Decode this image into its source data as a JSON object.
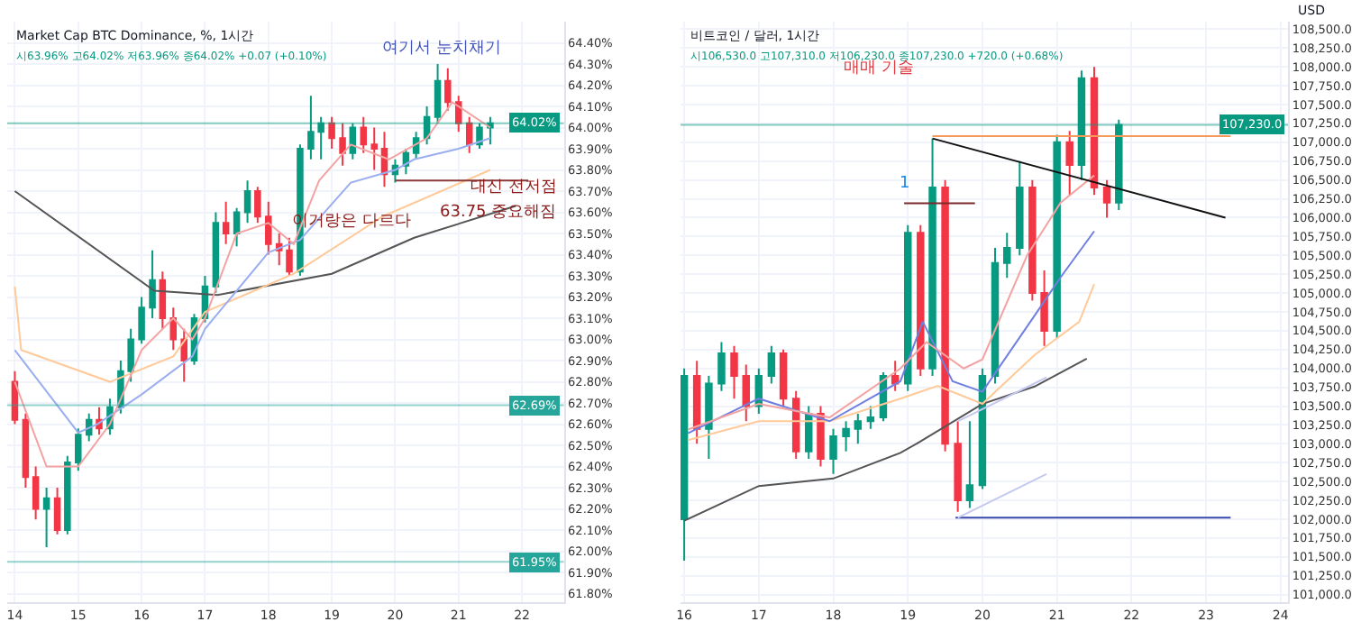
{
  "chart_data": [
    {
      "type": "candlestick",
      "title": "Market Cap BTC Dominance, %, 1시간",
      "subtitle": "시63.96% 고64.02% 저63.96% 종64.02% +0.07 (+0.10%)",
      "grid": true,
      "x": [
        14.0,
        14.17,
        14.33,
        14.5,
        14.67,
        14.83,
        15.0,
        15.17,
        15.33,
        15.5,
        15.67,
        15.83,
        16.0,
        16.17,
        16.33,
        16.5,
        16.67,
        16.83,
        17.0,
        17.17,
        17.33,
        17.5,
        17.67,
        17.83,
        18.0,
        18.17,
        18.33,
        18.5,
        18.67,
        18.83,
        19.0,
        19.17,
        19.33,
        19.5,
        19.67,
        19.83,
        20.0,
        20.17,
        20.33,
        20.5,
        20.67,
        20.83,
        21.0,
        21.17,
        21.33,
        21.5
      ],
      "ohlc": [
        [
          62.8,
          62.85,
          62.6,
          62.62
        ],
        [
          62.62,
          62.65,
          62.3,
          62.35
        ],
        [
          62.35,
          62.4,
          62.15,
          62.2
        ],
        [
          62.2,
          62.3,
          62.02,
          62.25
        ],
        [
          62.25,
          62.3,
          62.08,
          62.1
        ],
        [
          62.1,
          62.45,
          62.08,
          62.42
        ],
        [
          62.42,
          62.58,
          62.38,
          62.55
        ],
        [
          62.55,
          62.65,
          62.52,
          62.62
        ],
        [
          62.62,
          62.68,
          62.55,
          62.58
        ],
        [
          62.58,
          62.72,
          62.55,
          62.68
        ],
        [
          62.68,
          62.9,
          62.65,
          62.85
        ],
        [
          62.85,
          63.05,
          62.8,
          63.0
        ],
        [
          63.0,
          63.2,
          62.98,
          63.15
        ],
        [
          63.15,
          63.42,
          63.1,
          63.28
        ],
        [
          63.28,
          63.32,
          63.05,
          63.1
        ],
        [
          63.1,
          63.15,
          62.95,
          63.0
        ],
        [
          63.0,
          63.05,
          62.8,
          62.9
        ],
        [
          62.9,
          63.12,
          62.88,
          63.1
        ],
        [
          63.1,
          63.3,
          63.08,
          63.25
        ],
        [
          63.25,
          63.6,
          63.22,
          63.55
        ],
        [
          63.55,
          63.65,
          63.45,
          63.5
        ],
        [
          63.5,
          63.62,
          63.44,
          63.6
        ],
        [
          63.6,
          63.75,
          63.55,
          63.7
        ],
        [
          63.7,
          63.72,
          63.55,
          63.58
        ],
        [
          63.58,
          63.65,
          63.4,
          63.45
        ],
        [
          63.45,
          63.5,
          63.35,
          63.42
        ],
        [
          63.42,
          63.48,
          63.3,
          63.32
        ],
        [
          63.32,
          63.92,
          63.3,
          63.9
        ],
        [
          63.9,
          64.15,
          63.85,
          63.98
        ],
        [
          63.98,
          64.05,
          63.85,
          64.02
        ],
        [
          64.02,
          64.05,
          63.9,
          63.95
        ],
        [
          63.95,
          64.02,
          63.82,
          63.88
        ],
        [
          63.88,
          64.02,
          63.85,
          64.0
        ],
        [
          64.0,
          64.05,
          63.88,
          63.92
        ],
        [
          63.92,
          64.0,
          63.8,
          63.9
        ],
        [
          63.9,
          63.98,
          63.72,
          63.78
        ],
        [
          63.78,
          63.85,
          63.74,
          63.82
        ],
        [
          63.82,
          63.9,
          63.78,
          63.88
        ],
        [
          63.88,
          63.98,
          63.85,
          63.95
        ],
        [
          63.95,
          64.1,
          63.92,
          64.05
        ],
        [
          64.05,
          64.3,
          64.02,
          64.22
        ],
        [
          64.22,
          64.28,
          64.08,
          64.12
        ],
        [
          64.12,
          64.15,
          63.98,
          64.02
        ],
        [
          64.02,
          64.05,
          63.88,
          63.92
        ],
        [
          63.92,
          64.02,
          63.9,
          64.0
        ],
        [
          64.0,
          64.05,
          63.92,
          64.02
        ]
      ],
      "series": [
        {
          "type": "line",
          "color": "#555555",
          "x": [
            14.0,
            16.2,
            17.2,
            19.0,
            20.3,
            21.9
          ],
          "values": [
            63.7,
            63.23,
            63.21,
            63.31,
            63.48,
            63.63
          ]
        },
        {
          "type": "line",
          "color": "#ffc999",
          "x": [
            14.0,
            14.1,
            15.5,
            16.5,
            17.0,
            18.4,
            19.8,
            21.5
          ],
          "values": [
            63.25,
            62.95,
            62.8,
            62.92,
            63.13,
            63.31,
            63.58,
            63.8
          ]
        },
        {
          "type": "line",
          "color": "#9aaef0",
          "x": [
            14.0,
            15.0,
            15.3,
            16.0,
            16.8,
            17.0,
            18.0,
            18.5,
            19.3,
            20.0,
            20.3,
            21.0,
            21.5
          ],
          "values": [
            62.95,
            62.56,
            62.6,
            62.74,
            62.92,
            63.05,
            63.41,
            63.47,
            63.74,
            63.8,
            63.85,
            63.9,
            63.95
          ]
        },
        {
          "type": "line",
          "color": "#f4a3a3",
          "x": [
            14.0,
            14.5,
            15.0,
            15.5,
            16.0,
            16.5,
            16.8,
            17.0,
            17.5,
            18.0,
            18.4,
            18.8,
            19.3,
            19.9,
            20.5,
            20.9,
            21.5
          ],
          "values": [
            62.8,
            62.4,
            62.4,
            62.6,
            62.95,
            63.1,
            63.0,
            63.1,
            63.5,
            63.55,
            63.45,
            63.75,
            63.92,
            63.85,
            63.95,
            64.12,
            64.0
          ]
        },
        {
          "type": "line",
          "color": "#8b3a3a",
          "x": [
            20.0,
            22.1
          ],
          "values": [
            63.75,
            63.75
          ]
        }
      ],
      "ref_lines": [
        {
          "axis": "y",
          "value": 64.02,
          "label": "64.02%",
          "color": "#089981"
        },
        {
          "axis": "y",
          "value": 62.69,
          "label": "62.69%",
          "color": "#26a69a"
        },
        {
          "axis": "y",
          "value": 61.95,
          "label": "61.95%",
          "color": "#26a69a"
        }
      ],
      "annotations": [
        "여기서 눈치채기",
        "이거랑은 다르다",
        "대신 전저점",
        "63.75 중요해짐"
      ],
      "xlim": [
        13.88,
        22.66
      ],
      "xticks": [
        14,
        15,
        16,
        17,
        18,
        19,
        20,
        21,
        22
      ],
      "ylim": [
        61.76,
        64.5
      ],
      "yticks": [
        {
          "value": 61.8,
          "label": "61.80%"
        },
        {
          "value": 61.9,
          "label": "61.90%"
        },
        {
          "value": 62.0,
          "label": "62.00%"
        },
        {
          "value": 62.1,
          "label": "62.10%"
        },
        {
          "value": 62.2,
          "label": "62.20%"
        },
        {
          "value": 62.3,
          "label": "62.30%"
        },
        {
          "value": 62.4,
          "label": "62.40%"
        },
        {
          "value": 62.5,
          "label": "62.50%"
        },
        {
          "value": 62.6,
          "label": "62.60%"
        },
        {
          "value": 62.7,
          "label": "62.70%"
        },
        {
          "value": 62.8,
          "label": "62.80%"
        },
        {
          "value": 62.9,
          "label": "62.90%"
        },
        {
          "value": 63.0,
          "label": "63.00%"
        },
        {
          "value": 63.1,
          "label": "63.10%"
        },
        {
          "value": 63.2,
          "label": "63.20%"
        },
        {
          "value": 63.3,
          "label": "63.30%"
        },
        {
          "value": 63.4,
          "label": "63.40%"
        },
        {
          "value": 63.5,
          "label": "63.50%"
        },
        {
          "value": 63.6,
          "label": "63.60%"
        },
        {
          "value": 63.7,
          "label": "63.70%"
        },
        {
          "value": 63.8,
          "label": "63.80%"
        },
        {
          "value": 63.9,
          "label": "63.90%"
        },
        {
          "value": 64.0,
          "label": "64.00%"
        },
        {
          "value": 64.1,
          "label": "64.10%"
        },
        {
          "value": 64.2,
          "label": "64.20%"
        },
        {
          "value": 64.3,
          "label": "64.30%"
        },
        {
          "value": 64.4,
          "label": "64.40%"
        }
      ]
    },
    {
      "type": "candlestick",
      "title": "비트코인 / 달러, 1시간",
      "subtitle": "시106,530.0 고107,310.0 저106,230.0 종107,230.0 +720.0 (+0.68%)",
      "ylabel": "USD",
      "grid": true,
      "x": [
        16.0,
        16.17,
        16.33,
        16.5,
        16.67,
        16.83,
        17.0,
        17.17,
        17.33,
        17.5,
        17.67,
        17.83,
        18.0,
        18.17,
        18.33,
        18.5,
        18.67,
        18.83,
        19.0,
        19.17,
        19.33,
        19.5,
        19.67,
        19.83,
        20.0,
        20.17,
        20.33,
        20.5,
        20.67,
        20.83,
        21.0,
        21.17,
        21.33,
        21.5,
        21.67,
        21.83
      ],
      "ohlc": [
        [
          102000,
          104000,
          101450,
          103900
        ],
        [
          103900,
          104100,
          103000,
          103200
        ],
        [
          103200,
          103900,
          102800,
          103800
        ],
        [
          103800,
          104350,
          103700,
          104200
        ],
        [
          104200,
          104300,
          103600,
          103900
        ],
        [
          103900,
          104050,
          103300,
          103500
        ],
        [
          103500,
          104000,
          103400,
          103900
        ],
        [
          103900,
          104300,
          103800,
          104200
        ],
        [
          104200,
          104250,
          103500,
          103600
        ],
        [
          103600,
          103700,
          102800,
          102900
        ],
        [
          102900,
          103500,
          102800,
          103400
        ],
        [
          103400,
          103500,
          102700,
          102800
        ],
        [
          102800,
          103200,
          102600,
          103100
        ],
        [
          103100,
          103300,
          102900,
          103200
        ],
        [
          103200,
          103400,
          103000,
          103300
        ],
        [
          103300,
          103500,
          103200,
          103350
        ],
        [
          103350,
          103950,
          103300,
          103900
        ],
        [
          103900,
          104100,
          103700,
          103800
        ],
        [
          103800,
          105900,
          103700,
          105800
        ],
        [
          105800,
          105900,
          103900,
          104000
        ],
        [
          104000,
          107050,
          103900,
          106400
        ],
        [
          106400,
          106500,
          102900,
          103000
        ],
        [
          103000,
          103300,
          102100,
          102250
        ],
        [
          102250,
          103300,
          102150,
          102450
        ],
        [
          102450,
          104000,
          102400,
          103900
        ],
        [
          103900,
          105600,
          103800,
          105400
        ],
        [
          105400,
          105800,
          105200,
          105600
        ],
        [
          105600,
          106750,
          105500,
          106400
        ],
        [
          106400,
          106500,
          104900,
          105000
        ],
        [
          105000,
          105300,
          104300,
          104500
        ],
        [
          104500,
          107100,
          104400,
          107000
        ],
        [
          107000,
          107150,
          106300,
          106700
        ],
        [
          106700,
          107950,
          106500,
          107850
        ],
        [
          107850,
          108000,
          106300,
          106400
        ],
        [
          106400,
          106500,
          106000,
          106200
        ],
        [
          106200,
          107300,
          106100,
          107230
        ]
      ],
      "series": [
        {
          "type": "line",
          "color": "#555555",
          "x": [
            16.0,
            17.0,
            18.0,
            18.9,
            19.15,
            20.0,
            20.7,
            21.4
          ],
          "values": [
            101980,
            102440,
            102540,
            102880,
            103020,
            103530,
            103760,
            104130
          ]
        },
        {
          "type": "line",
          "color": "#ffc999",
          "x": [
            16.05,
            17.0,
            17.95,
            18.9,
            19.4,
            20.0,
            20.7,
            21.3,
            21.5
          ],
          "values": [
            103050,
            103300,
            103300,
            103600,
            103770,
            103530,
            104180,
            104620,
            105120
          ]
        },
        {
          "type": "line",
          "color": "#6f7fe0",
          "x": [
            16.05,
            17.0,
            17.95,
            18.9,
            19.2,
            19.6,
            20.0,
            20.7,
            21.05,
            21.5
          ],
          "values": [
            103140,
            103600,
            103300,
            103830,
            104620,
            103830,
            103690,
            104700,
            105210,
            105820
          ]
        },
        {
          "type": "line",
          "color": "#f4a3a3",
          "x": [
            16.05,
            17.0,
            17.95,
            18.9,
            19.25,
            19.75,
            20.0,
            20.6,
            21.05,
            21.5
          ],
          "values": [
            103190,
            103530,
            103350,
            104000,
            104350,
            104000,
            104120,
            105500,
            106200,
            106560
          ]
        },
        {
          "type": "line",
          "color": "#f59a5b",
          "x": [
            19.33,
            23.33
          ],
          "values": [
            107080,
            107080
          ]
        },
        {
          "type": "line",
          "color": "#111111",
          "x": [
            19.33,
            23.26
          ],
          "values": [
            107050,
            106000
          ]
        },
        {
          "type": "line",
          "color": "#7a2a2a",
          "x": [
            18.95,
            19.9
          ],
          "values": [
            106190,
            106190
          ]
        },
        {
          "type": "line",
          "color": "#3949ab",
          "x": [
            19.64,
            23.33
          ],
          "values": [
            102020,
            102020
          ]
        },
        {
          "type": "line",
          "color": "#c5c8f0",
          "x": [
            19.67,
            20.86
          ],
          "values": [
            102020,
            102600
          ]
        },
        {
          "type": "line",
          "color": "#c5c8f0",
          "x": [
            19.67,
            20.86
          ],
          "values": [
            103300,
            103880
          ]
        }
      ],
      "ref_lines": [
        {
          "axis": "y",
          "value": 107230,
          "label": "107,230.0",
          "color": "#089981"
        }
      ],
      "annotations": [
        "매매 기술",
        "1"
      ],
      "xlim": [
        15.95,
        24.1
      ],
      "xticks": [
        16,
        17,
        18,
        19,
        20,
        21,
        22,
        23,
        24
      ],
      "ylim": [
        100900,
        108600
      ],
      "yticks": [
        {
          "value": 101000,
          "label": "101,000.0"
        },
        {
          "value": 101250,
          "label": "101,250.0"
        },
        {
          "value": 101500,
          "label": "101,500.0"
        },
        {
          "value": 101750,
          "label": "101,750.0"
        },
        {
          "value": 102000,
          "label": "102,000.0"
        },
        {
          "value": 102250,
          "label": "102,250.0"
        },
        {
          "value": 102500,
          "label": "102,500.0"
        },
        {
          "value": 102750,
          "label": "102,750.0"
        },
        {
          "value": 103000,
          "label": "103,000.0"
        },
        {
          "value": 103250,
          "label": "103,250.0"
        },
        {
          "value": 103500,
          "label": "103,500.0"
        },
        {
          "value": 103750,
          "label": "103,750.0"
        },
        {
          "value": 104000,
          "label": "104,000.0"
        },
        {
          "value": 104250,
          "label": "104,250.0"
        },
        {
          "value": 104500,
          "label": "104,500.0"
        },
        {
          "value": 104750,
          "label": "104,750.0"
        },
        {
          "value": 105000,
          "label": "105,000.0"
        },
        {
          "value": 105250,
          "label": "105,250.0"
        },
        {
          "value": 105500,
          "label": "105,500.0"
        },
        {
          "value": 105750,
          "label": "105,750.0"
        },
        {
          "value": 106000,
          "label": "106,000.0"
        },
        {
          "value": 106250,
          "label": "106,250.0"
        },
        {
          "value": 106500,
          "label": "106,500.0"
        },
        {
          "value": 106750,
          "label": "106,750.0"
        },
        {
          "value": 107000,
          "label": "107,000.0"
        },
        {
          "value": 107250,
          "label": "107,250.0"
        },
        {
          "value": 107500,
          "label": "107,500.0"
        },
        {
          "value": 107750,
          "label": "107,750.0"
        },
        {
          "value": 108000,
          "label": "108,000.0"
        },
        {
          "value": 108250,
          "label": "108,250.0"
        },
        {
          "value": 108500,
          "label": "108,500.0"
        }
      ]
    }
  ]
}
